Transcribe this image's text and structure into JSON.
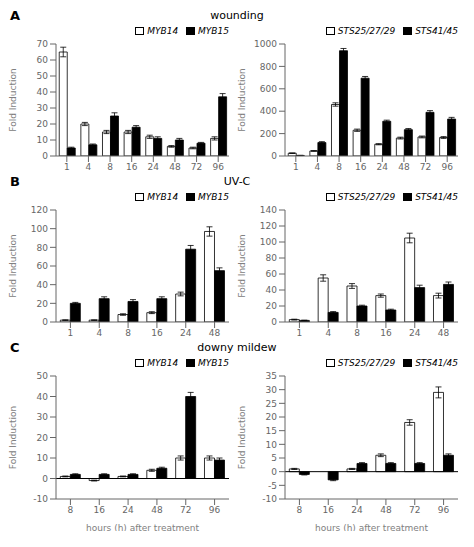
{
  "chart_data": [
    {
      "type": "bar",
      "title": "wounding",
      "annotations": [
        "A"
      ],
      "y_label": "Fold Induction",
      "categories": [
        "1",
        "4",
        "8",
        "16",
        "24",
        "48",
        "72",
        "96"
      ],
      "series": [
        {
          "name": "MYB14",
          "color": "#ffffff",
          "values": [
            65,
            20,
            15,
            15,
            12,
            6,
            5,
            11
          ],
          "errors": [
            3,
            1,
            1,
            1,
            1,
            0.5,
            0.5,
            1
          ]
        },
        {
          "name": "MYB15",
          "color": "#000000",
          "values": [
            5,
            7,
            25,
            18,
            11,
            10,
            8,
            37
          ],
          "errors": [
            0.5,
            0.5,
            2,
            1,
            1,
            1,
            0.5,
            2
          ]
        }
      ],
      "ylim": [
        0,
        70
      ],
      "yticks": [
        0,
        10,
        20,
        30,
        40,
        50,
        60,
        70
      ],
      "legend": "upper right",
      "grid": false
    },
    {
      "type": "bar",
      "y_label": "Fold Induction",
      "categories": [
        "1",
        "4",
        "8",
        "16",
        "24",
        "48",
        "72",
        "96"
      ],
      "series": [
        {
          "name": "STS25/27/29",
          "color": "#ffffff",
          "values": [
            25,
            45,
            460,
            230,
            105,
            160,
            170,
            165
          ],
          "errors": [
            2,
            3,
            15,
            10,
            5,
            8,
            8,
            8
          ]
        },
        {
          "name": "STS41/45",
          "color": "#000000",
          "values": [
            5,
            120,
            940,
            695,
            310,
            235,
            390,
            330
          ],
          "errors": [
            1,
            8,
            20,
            15,
            10,
            10,
            15,
            15
          ]
        }
      ],
      "ylim": [
        0,
        1000
      ],
      "yticks": [
        0,
        200,
        400,
        600,
        800,
        1000
      ],
      "legend": "upper right",
      "grid": false
    },
    {
      "type": "bar",
      "title": "UV-C",
      "annotations": [
        "B"
      ],
      "y_label": "Fold Induction",
      "categories": [
        "1",
        "4",
        "8",
        "16",
        "24",
        "48"
      ],
      "series": [
        {
          "name": "MYB14",
          "color": "#ffffff",
          "values": [
            2,
            2,
            8,
            10,
            30,
            97
          ],
          "errors": [
            0.3,
            0.3,
            0.8,
            1,
            2,
            5
          ]
        },
        {
          "name": "MYB15",
          "color": "#000000",
          "values": [
            20,
            25,
            22,
            25,
            78,
            55
          ],
          "errors": [
            1,
            2,
            2,
            2,
            4,
            3
          ]
        }
      ],
      "ylim": [
        0,
        120
      ],
      "yticks": [
        0,
        20,
        40,
        60,
        80,
        100,
        120
      ],
      "legend": "upper right",
      "grid": false
    },
    {
      "type": "bar",
      "y_label": "Fold Induction",
      "categories": [
        "1",
        "4",
        "8",
        "16",
        "24",
        "48"
      ],
      "series": [
        {
          "name": "STS25/27/29",
          "color": "#ffffff",
          "values": [
            3,
            55,
            45,
            33,
            105,
            33
          ],
          "errors": [
            0.5,
            4,
            3,
            2,
            6,
            3
          ]
        },
        {
          "name": "STS41/45",
          "color": "#000000",
          "values": [
            2,
            12,
            20,
            15,
            43,
            47
          ],
          "errors": [
            0.3,
            1,
            1,
            1,
            3,
            3
          ]
        }
      ],
      "ylim": [
        0,
        140
      ],
      "yticks": [
        0,
        20,
        40,
        60,
        80,
        100,
        120,
        140
      ],
      "legend": "upper right",
      "grid": false
    },
    {
      "type": "bar",
      "title": "downy mildew",
      "annotations": [
        "C"
      ],
      "x_label": "hours (h) after treatment",
      "y_label": "Fold Induction",
      "categories": [
        "8",
        "16",
        "24",
        "48",
        "72",
        "96"
      ],
      "series": [
        {
          "name": "MYB14",
          "color": "#ffffff",
          "values": [
            1,
            -1,
            1,
            4,
            10,
            10
          ],
          "errors": [
            0.2,
            0.2,
            0.2,
            0.5,
            1,
            1
          ]
        },
        {
          "name": "MYB15",
          "color": "#000000",
          "values": [
            2,
            2,
            2,
            5,
            40,
            9
          ],
          "errors": [
            0.3,
            0.3,
            0.3,
            0.5,
            2,
            1
          ]
        }
      ],
      "ylim": [
        -10,
        50
      ],
      "yticks": [
        -10,
        0,
        10,
        20,
        30,
        40,
        50
      ],
      "legend": "upper right",
      "grid": false
    },
    {
      "type": "bar",
      "x_label": "hours (h) after treatment",
      "y_label": "Fold Induction",
      "categories": [
        "8",
        "16",
        "24",
        "48",
        "72",
        "96"
      ],
      "series": [
        {
          "name": "STS25/27/29",
          "color": "#ffffff",
          "values": [
            1,
            0,
            1,
            6,
            18,
            29
          ],
          "errors": [
            0.2,
            0.2,
            0.2,
            0.5,
            1,
            2
          ]
        },
        {
          "name": "STS41/45",
          "color": "#000000",
          "values": [
            -1,
            -3,
            3,
            3,
            3,
            6
          ],
          "errors": [
            0.2,
            0.3,
            0.3,
            0.3,
            0.3,
            0.5
          ]
        }
      ],
      "ylim": [
        -10,
        35
      ],
      "yticks": [
        -10,
        -5,
        0,
        5,
        10,
        15,
        20,
        25,
        30,
        35
      ],
      "legend": "upper right",
      "grid": false
    }
  ]
}
